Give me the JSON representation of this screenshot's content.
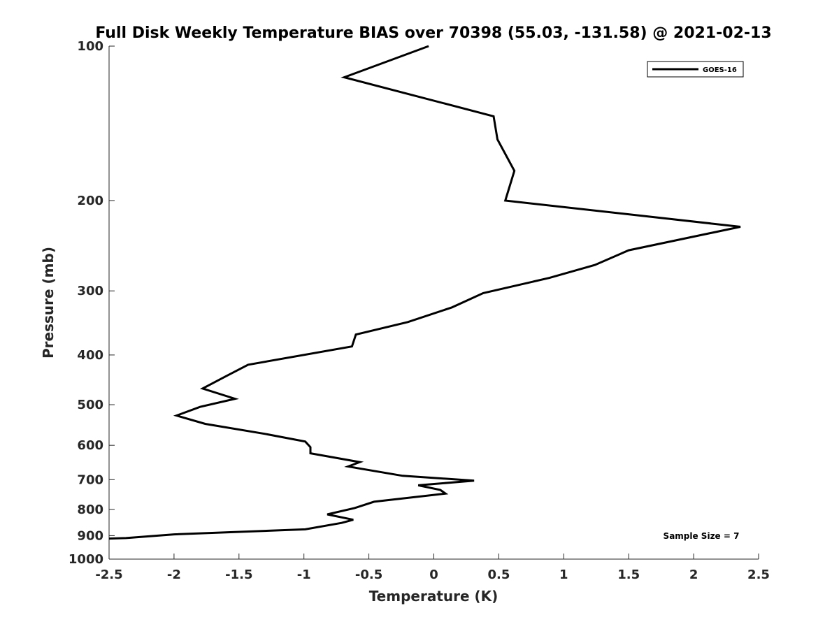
{
  "chart_data": {
    "type": "line",
    "title": "Full Disk Weekly Temperature BIAS over 70398 (55.03, -131.58) @ 2021-02-13",
    "xlabel": "Temperature (K)",
    "ylabel": "Pressure (mb)",
    "xlim": [
      -2.5,
      2.5
    ],
    "ylim": [
      100,
      1000
    ],
    "y_scale": "log",
    "y_reversed": true,
    "x_ticks": [
      -2.5,
      -2,
      -1.5,
      -1,
      -0.5,
      0,
      0.5,
      1,
      1.5,
      2,
      2.5
    ],
    "x_tick_labels": [
      "-2.5",
      "-2",
      "-1.5",
      "-1",
      "-0.5",
      "0",
      "0.5",
      "1",
      "1.5",
      "2",
      "2.5"
    ],
    "y_ticks": [
      100,
      200,
      300,
      400,
      500,
      600,
      700,
      800,
      900,
      1000
    ],
    "y_tick_labels": [
      "100",
      "200",
      "300",
      "400",
      "500",
      "600",
      "700",
      "800",
      "900",
      "1000"
    ],
    "grid": false,
    "legend_position": "top-right",
    "series": [
      {
        "name": "GOES-16",
        "color": "#000000",
        "x": [
          -0.04,
          -0.69,
          0.46,
          0.49,
          0.62,
          0.55,
          2.36,
          1.5,
          1.24,
          0.89,
          0.38,
          0.14,
          -0.2,
          -0.6,
          -0.63,
          -1.43,
          -1.6,
          -1.78,
          -1.53,
          -1.8,
          -1.98,
          -1.76,
          -1.3,
          -0.99,
          -0.95,
          -0.95,
          -0.57,
          -0.66,
          -0.24,
          0.31,
          -0.12,
          0.05,
          0.09,
          -0.46,
          -0.61,
          -0.82,
          -0.62,
          -0.71,
          -0.99,
          -2.0,
          -2.37,
          -2.5
        ],
        "y": [
          100,
          115,
          137,
          152,
          175,
          200,
          225,
          250,
          267,
          283,
          303,
          323,
          345,
          365,
          385,
          418,
          440,
          465,
          487,
          505,
          525,
          545,
          570,
          590,
          605,
          622,
          647,
          660,
          688,
          703,
          718,
          733,
          745,
          773,
          795,
          818,
          838,
          850,
          875,
          895,
          910,
          912
        ]
      }
    ],
    "annotations": [
      "Sample Size = 7"
    ]
  }
}
